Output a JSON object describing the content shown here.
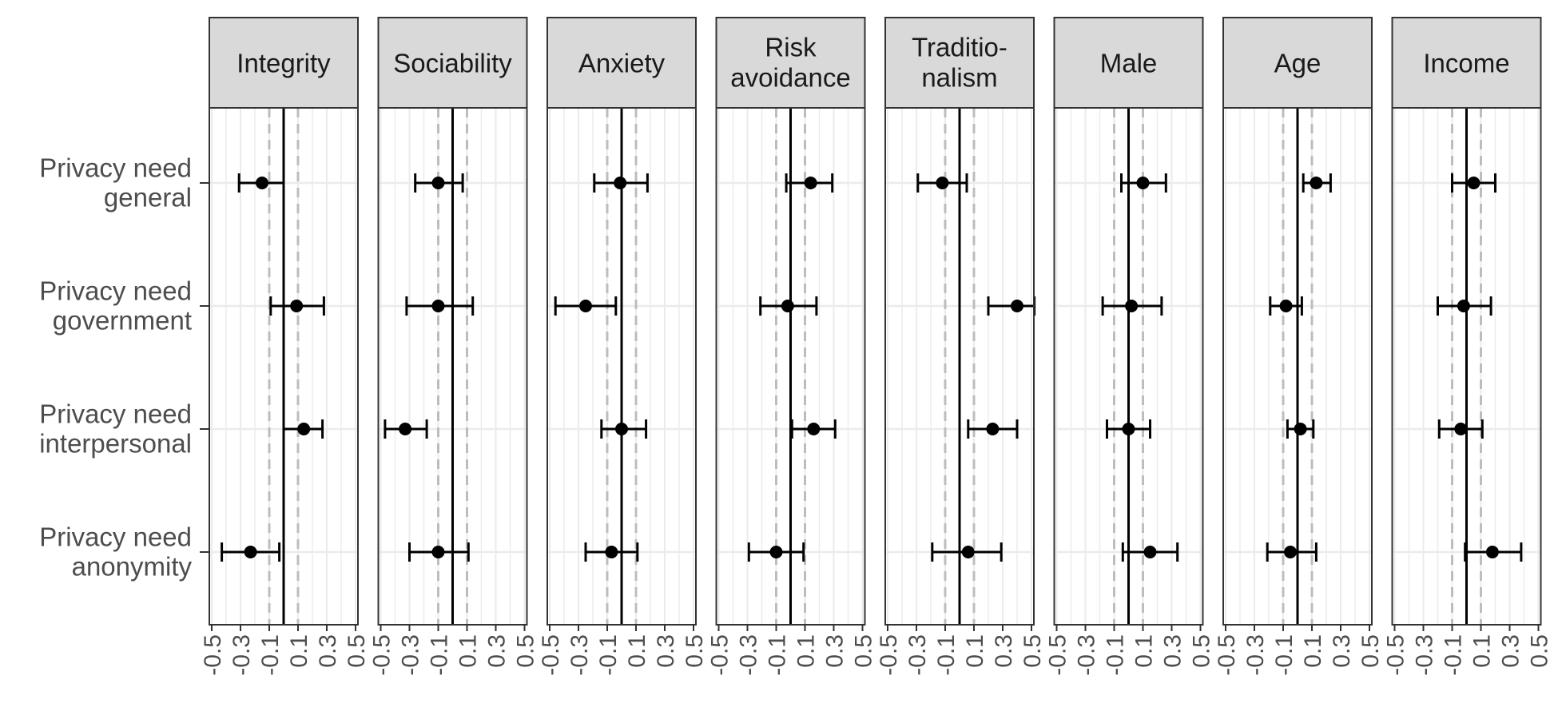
{
  "chart_data": {
    "type": "scatter",
    "subtype": "coefficient-plot-with-error-bars",
    "title": "",
    "xlabel": "",
    "ylabel": "",
    "xlim": [
      -0.5,
      0.5
    ],
    "x_ticks": [
      -0.5,
      -0.3,
      -0.1,
      0.1,
      0.3,
      0.5
    ],
    "x_tick_labels": [
      "-0.5",
      "-0.3",
      "-0.1",
      "0.1",
      "0.3",
      "0.5"
    ],
    "reference_line": 0,
    "dashed_reference_lines": [
      -0.1,
      0.1
    ],
    "grid": true,
    "legend": "none",
    "colors": {
      "point": "#000000",
      "strip_fill": "#d9d9d9",
      "panel_border": "#333333",
      "grid": "#ebebeb",
      "dashed_line": "#bdbdbd",
      "axis_text": "#4d4d4d",
      "strip_text": "#1a1a1a"
    },
    "rows": [
      {
        "label": [
          "Privacy need",
          "general"
        ]
      },
      {
        "label": [
          "Privacy need",
          "government"
        ]
      },
      {
        "label": [
          "Privacy need",
          "interpersonal"
        ]
      },
      {
        "label": [
          "Privacy need",
          "anonymity"
        ]
      }
    ],
    "panels": [
      {
        "title": [
          "Integrity"
        ],
        "points": [
          {
            "row": 0,
            "estimate": -0.15,
            "low": -0.31,
            "high": 0.0
          },
          {
            "row": 1,
            "estimate": 0.09,
            "low": -0.09,
            "high": 0.28
          },
          {
            "row": 2,
            "estimate": 0.14,
            "low": 0.0,
            "high": 0.27
          },
          {
            "row": 3,
            "estimate": -0.23,
            "low": -0.43,
            "high": -0.03
          }
        ]
      },
      {
        "title": [
          "Sociability"
        ],
        "points": [
          {
            "row": 0,
            "estimate": -0.1,
            "low": -0.26,
            "high": 0.07
          },
          {
            "row": 1,
            "estimate": -0.1,
            "low": -0.32,
            "high": 0.14
          },
          {
            "row": 2,
            "estimate": -0.33,
            "low": -0.47,
            "high": -0.18
          },
          {
            "row": 3,
            "estimate": -0.1,
            "low": -0.3,
            "high": 0.11
          }
        ]
      },
      {
        "title": [
          "Anxiety"
        ],
        "points": [
          {
            "row": 0,
            "estimate": -0.01,
            "low": -0.19,
            "high": 0.18
          },
          {
            "row": 1,
            "estimate": -0.25,
            "low": -0.46,
            "high": -0.04
          },
          {
            "row": 2,
            "estimate": 0.0,
            "low": -0.14,
            "high": 0.17
          },
          {
            "row": 3,
            "estimate": -0.07,
            "low": -0.25,
            "high": 0.11
          }
        ]
      },
      {
        "title": [
          "Risk",
          "avoidance"
        ],
        "points": [
          {
            "row": 0,
            "estimate": 0.14,
            "low": -0.03,
            "high": 0.29
          },
          {
            "row": 1,
            "estimate": -0.02,
            "low": -0.21,
            "high": 0.18
          },
          {
            "row": 2,
            "estimate": 0.16,
            "low": 0.01,
            "high": 0.31
          },
          {
            "row": 3,
            "estimate": -0.1,
            "low": -0.29,
            "high": 0.09
          }
        ]
      },
      {
        "title": [
          "Traditio-",
          "nalism"
        ],
        "points": [
          {
            "row": 0,
            "estimate": -0.12,
            "low": -0.29,
            "high": 0.05
          },
          {
            "row": 1,
            "estimate": 0.4,
            "low": 0.2,
            "high": 0.52
          },
          {
            "row": 2,
            "estimate": 0.23,
            "low": 0.06,
            "high": 0.4
          },
          {
            "row": 3,
            "estimate": 0.06,
            "low": -0.19,
            "high": 0.29
          }
        ]
      },
      {
        "title": [
          "Male"
        ],
        "points": [
          {
            "row": 0,
            "estimate": 0.1,
            "low": -0.05,
            "high": 0.26
          },
          {
            "row": 1,
            "estimate": 0.02,
            "low": -0.18,
            "high": 0.23
          },
          {
            "row": 2,
            "estimate": 0.0,
            "low": -0.15,
            "high": 0.15
          },
          {
            "row": 3,
            "estimate": 0.15,
            "low": -0.04,
            "high": 0.34
          }
        ]
      },
      {
        "title": [
          "Age"
        ],
        "points": [
          {
            "row": 0,
            "estimate": 0.13,
            "low": 0.04,
            "high": 0.23
          },
          {
            "row": 1,
            "estimate": -0.08,
            "low": -0.19,
            "high": 0.03
          },
          {
            "row": 2,
            "estimate": 0.02,
            "low": -0.07,
            "high": 0.11
          },
          {
            "row": 3,
            "estimate": -0.05,
            "low": -0.21,
            "high": 0.13
          }
        ]
      },
      {
        "title": [
          "Income"
        ],
        "points": [
          {
            "row": 0,
            "estimate": 0.05,
            "low": -0.1,
            "high": 0.2
          },
          {
            "row": 1,
            "estimate": -0.02,
            "low": -0.2,
            "high": 0.17
          },
          {
            "row": 2,
            "estimate": -0.04,
            "low": -0.19,
            "high": 0.11
          },
          {
            "row": 3,
            "estimate": 0.18,
            "low": -0.01,
            "high": 0.38
          }
        ]
      }
    ]
  }
}
